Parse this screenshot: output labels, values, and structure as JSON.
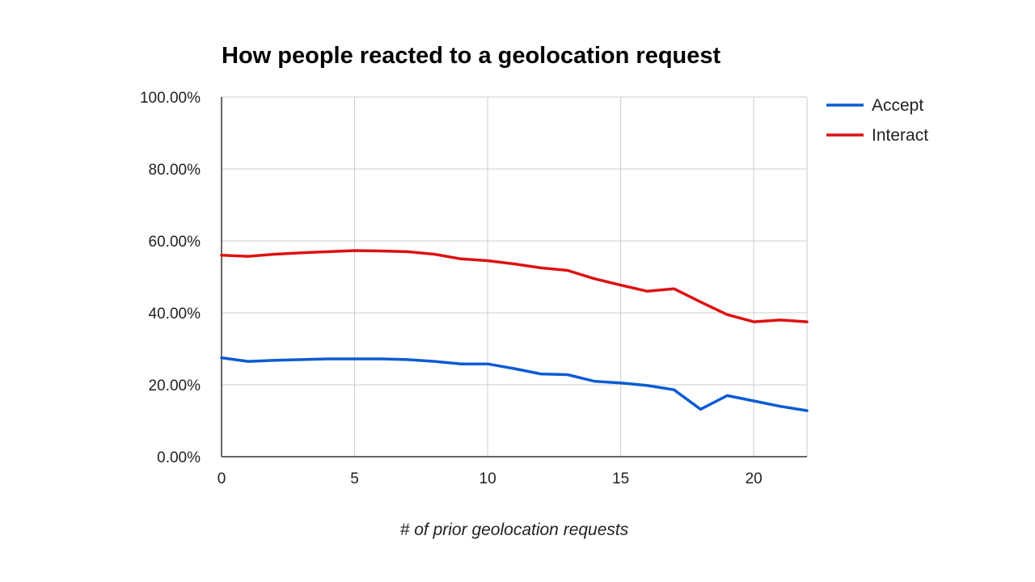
{
  "chart_data": {
    "type": "line",
    "title": "How people reacted to a geolocation request",
    "xlabel": "# of prior geolocation requests",
    "ylabel": "",
    "x": [
      0,
      1,
      2,
      3,
      4,
      5,
      6,
      7,
      8,
      9,
      10,
      11,
      12,
      13,
      14,
      15,
      16,
      17,
      18,
      19,
      20,
      21,
      22
    ],
    "xlim": [
      0,
      22
    ],
    "ylim": [
      0,
      1
    ],
    "x_ticks": [
      0,
      5,
      10,
      15,
      20
    ],
    "x_tick_labels": [
      "0",
      "5",
      "10",
      "15",
      "20"
    ],
    "y_ticks": [
      0,
      0.2,
      0.4,
      0.6,
      0.8,
      1.0
    ],
    "y_tick_labels": [
      "0.00%",
      "20.00%",
      "40.00%",
      "60.00%",
      "80.00%",
      "100.00%"
    ],
    "grid": true,
    "legend_position": "top-right",
    "series": [
      {
        "name": "Accept",
        "color": "#0b5bd3",
        "values": [
          0.275,
          0.265,
          0.268,
          0.27,
          0.272,
          0.272,
          0.272,
          0.27,
          0.265,
          0.258,
          0.258,
          0.245,
          0.23,
          0.228,
          0.21,
          0.205,
          0.198,
          0.186,
          0.132,
          0.17,
          0.155,
          0.14,
          0.128
        ]
      },
      {
        "name": "Interact",
        "color": "#dd1111",
        "values": [
          0.56,
          0.557,
          0.563,
          0.567,
          0.57,
          0.573,
          0.572,
          0.57,
          0.563,
          0.55,
          0.545,
          0.536,
          0.525,
          0.518,
          0.495,
          0.477,
          0.46,
          0.467,
          0.43,
          0.395,
          0.375,
          0.38,
          0.375
        ]
      }
    ]
  }
}
